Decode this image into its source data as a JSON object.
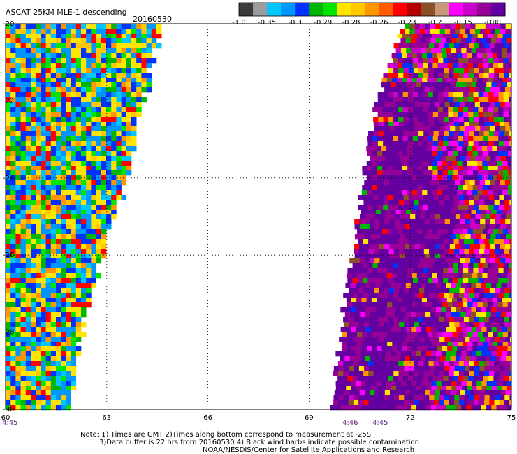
{
  "header": {
    "title": "ASCAT 25KM MLE-1 descending",
    "date": "20160530"
  },
  "colorbar": {
    "colors": [
      "#3c3c3c",
      "#9c9c9c",
      "#00c8ff",
      "#0096ff",
      "#0032ff",
      "#00b400",
      "#00e600",
      "#ffe600",
      "#ffc800",
      "#ff9600",
      "#ff5a00",
      "#ff0000",
      "#b40000",
      "#8c5028",
      "#c89678",
      "#ff00ff",
      "#c800c8",
      "#960096",
      "#6400a0"
    ],
    "labels": [
      "-1.0",
      "-0.35",
      "-0.3",
      "-0.29",
      "-0.28",
      "-0.26",
      "-0.23",
      "-0.2",
      "-0.15",
      "-0.1",
      "0.0"
    ],
    "label_at_color_index": [
      0,
      2,
      4,
      6,
      8,
      10,
      12,
      14,
      16,
      18,
      19
    ]
  },
  "axes": {
    "x_ticks": [
      "60",
      "63",
      "66",
      "69",
      "72",
      "75"
    ],
    "y_ticks": [
      "-20",
      "-22",
      "-24",
      "-26",
      "-28",
      "-30"
    ]
  },
  "time_labels": [
    "4:45",
    "4:46",
    "4:45"
  ],
  "notes": {
    "line1": "Note: 1) Times are GMT 2)Times along bottom correspond to measurement at -25S",
    "line2": "3)Data buffer is 22 hrs from 20160530 4) Black wind barbs indicate possible contamination",
    "line3": "NOAA/NESDIS/Center for Satellite Applications and Research"
  },
  "chart_data": {
    "type": "heatmap",
    "title": "ASCAT 25KM MLE-1 descending 20160530",
    "xlabel": "",
    "ylabel": "",
    "xlim": [
      60,
      75
    ],
    "ylim": [
      -30,
      -20
    ],
    "grid": true,
    "colorscale_values": [
      -1.0,
      -0.35,
      -0.3,
      -0.29,
      -0.28,
      -0.26,
      -0.23,
      -0.2,
      -0.15,
      -0.1,
      0.0
    ],
    "swaths": [
      {
        "description": "left swath",
        "lat_lon_edges": [
          [
            -20,
            60,
            64.6
          ],
          [
            -22,
            60,
            64.0
          ],
          [
            -24,
            60,
            63.5
          ],
          [
            -26,
            60,
            62.8
          ],
          [
            -28,
            60,
            62.2
          ],
          [
            -30,
            60,
            61.8
          ]
        ],
        "dominant_values": [
          -0.3,
          -0.28,
          -0.26,
          -0.2
        ],
        "time": "4:45"
      },
      {
        "description": "right swath",
        "lat_lon_edges": [
          [
            -20,
            71.8,
            75
          ],
          [
            -22,
            71.0,
            75
          ],
          [
            -24,
            70.6,
            75
          ],
          [
            -26,
            70.3,
            75
          ],
          [
            -28,
            69.9,
            75
          ],
          [
            -30,
            69.7,
            75
          ]
        ],
        "dominant_values": [
          -0.1,
          0.0,
          -0.15,
          -0.2
        ],
        "time": "4:46"
      }
    ]
  }
}
